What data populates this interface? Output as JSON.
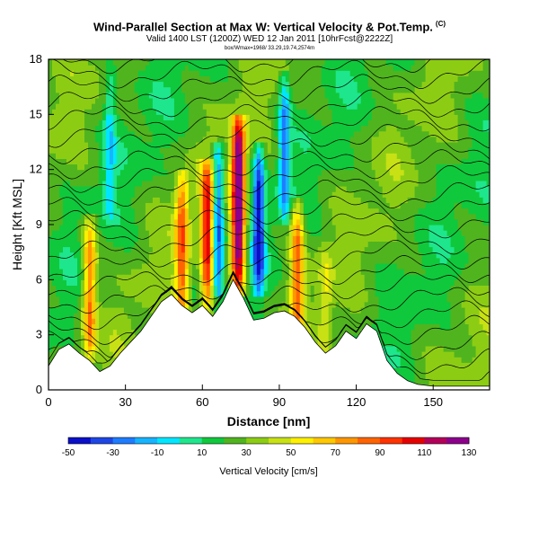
{
  "header": {
    "title": "Wind-Parallel Section at Max W: Vertical Velocity & Pot.Temp.",
    "title_mark": "(C)",
    "valid_line": "Valid 1400 LST (1200Z) WED 12 Jan 2011 [10hrFcst@2222Z]",
    "small_line": "box/Wmax=1968/ 33.29,19.74,2574m"
  },
  "chart_data": {
    "type": "heatmap",
    "title": "Wind-Parallel Section at Max W: Vertical Velocity & Pot.Temp.",
    "xlabel": "Distance [nm]",
    "ylabel": "Height [Kft MSL]",
    "xlim": [
      0,
      172
    ],
    "ylim": [
      0,
      18
    ],
    "x_ticks": [
      "0",
      "30",
      "60",
      "90",
      "120",
      "150"
    ],
    "x_tick_values": [
      0,
      30,
      60,
      90,
      120,
      150
    ],
    "y_ticks": [
      "0",
      "3",
      "6",
      "9",
      "12",
      "15",
      "18"
    ],
    "y_tick_values": [
      0,
      3,
      6,
      9,
      12,
      15,
      18
    ],
    "colorbar": {
      "label": "Vertical Velocity [cm/s]",
      "tick_labels": [
        "-50",
        "-30",
        "-10",
        "10",
        "30",
        "50",
        "70",
        "90",
        "110",
        "130"
      ],
      "colors": [
        "#0a10c8",
        "#1e46e6",
        "#1e7cff",
        "#16b4ff",
        "#00e6ff",
        "#1ee68c",
        "#10c83c",
        "#50b41e",
        "#8ccd14",
        "#c8e114",
        "#fff000",
        "#ffc800",
        "#ff9600",
        "#ff6400",
        "#ff3200",
        "#e60000",
        "#b4005a",
        "#8c008c"
      ]
    },
    "terrain_kft": [
      [
        0,
        1.3
      ],
      [
        4,
        2.2
      ],
      [
        8,
        2.5
      ],
      [
        12,
        2.0
      ],
      [
        16,
        1.6
      ],
      [
        20,
        1.0
      ],
      [
        24,
        1.3
      ],
      [
        28,
        2.0
      ],
      [
        32,
        2.6
      ],
      [
        36,
        3.2
      ],
      [
        40,
        4.0
      ],
      [
        44,
        4.8
      ],
      [
        48,
        5.2
      ],
      [
        52,
        4.6
      ],
      [
        56,
        4.2
      ],
      [
        60,
        4.6
      ],
      [
        64,
        4.0
      ],
      [
        68,
        4.8
      ],
      [
        72,
        6.0
      ],
      [
        76,
        5.0
      ],
      [
        80,
        3.8
      ],
      [
        84,
        3.9
      ],
      [
        88,
        4.2
      ],
      [
        92,
        4.3
      ],
      [
        96,
        4.0
      ],
      [
        100,
        3.4
      ],
      [
        104,
        2.6
      ],
      [
        108,
        2.0
      ],
      [
        112,
        2.4
      ],
      [
        116,
        3.2
      ],
      [
        120,
        2.8
      ],
      [
        124,
        3.6
      ],
      [
        128,
        3.2
      ],
      [
        132,
        1.6
      ],
      [
        136,
        0.9
      ],
      [
        140,
        0.5
      ],
      [
        144,
        0.3
      ],
      [
        150,
        0.2
      ],
      [
        158,
        0.2
      ],
      [
        166,
        0.2
      ],
      [
        172,
        0.2
      ]
    ],
    "updrafts": [
      {
        "x": 16,
        "z_bottom": 2.5,
        "z_top": 8.5,
        "w_max": 70
      },
      {
        "x": 52,
        "z_bottom": 4.5,
        "z_top": 11.0,
        "w_max": 70
      },
      {
        "x": 62,
        "z_bottom": 5.0,
        "z_top": 11.5,
        "w_max": 90
      },
      {
        "x": 74,
        "z_bottom": 6.0,
        "z_top": 14.0,
        "w_max": 130
      },
      {
        "x": 97,
        "z_bottom": 4.0,
        "z_top": 9.5,
        "w_max": 70
      },
      {
        "x": 108,
        "z_bottom": 2.5,
        "z_top": 7.0,
        "w_max": 30
      }
    ],
    "downdrafts": [
      {
        "x": 66,
        "z_bottom": 6.0,
        "z_top": 12.5,
        "w_min": -50
      },
      {
        "x": 82,
        "z_bottom": 6.0,
        "z_top": 12.5,
        "w_min": -50
      },
      {
        "x": 92,
        "z_bottom": 10.0,
        "z_top": 16.5,
        "w_min": -30
      },
      {
        "x": 24,
        "z_bottom": 10.0,
        "z_top": 17.5,
        "w_min": -10
      }
    ],
    "isentrope_count": 22
  }
}
